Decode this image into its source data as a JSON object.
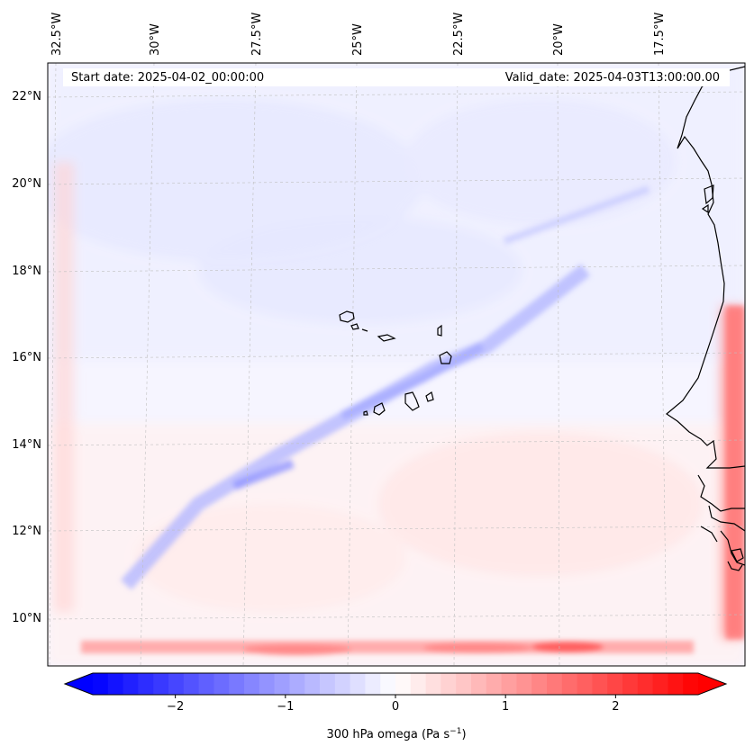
{
  "header": {
    "start_date": "Start date: 2025-04-02_00:00:00",
    "valid_date": "Valid_date: 2025-04-03T13:00:00.00"
  },
  "map": {
    "lon_ticks": [
      "32.5°W",
      "30°W",
      "27.5°W",
      "25°W",
      "22.5°W",
      "20°W",
      "17.5°W"
    ],
    "lat_ticks": [
      "22°N",
      "20°N",
      "18°N",
      "16°N",
      "14°N",
      "12°N",
      "10°N"
    ],
    "extent": {
      "lon_min": -32.7,
      "lon_max": -15.4,
      "lat_min": 8.9,
      "lat_max": 22.8
    },
    "gridlines": true,
    "field_colors": {
      "negative": "#0000ff",
      "zero": "#ffffff",
      "positive": "#ff0000"
    },
    "coastline_color": "#000000"
  },
  "colorbar": {
    "label_base": "300 hPa omega (Pa s",
    "label_exp": "−1",
    "label_end": ")",
    "vmin": -2.75,
    "vmax": 2.75,
    "ticks": [
      "−2",
      "−1",
      "0",
      "1",
      "2"
    ],
    "tick_values": [
      -2,
      -1,
      0,
      1,
      2
    ],
    "extend": "both"
  }
}
